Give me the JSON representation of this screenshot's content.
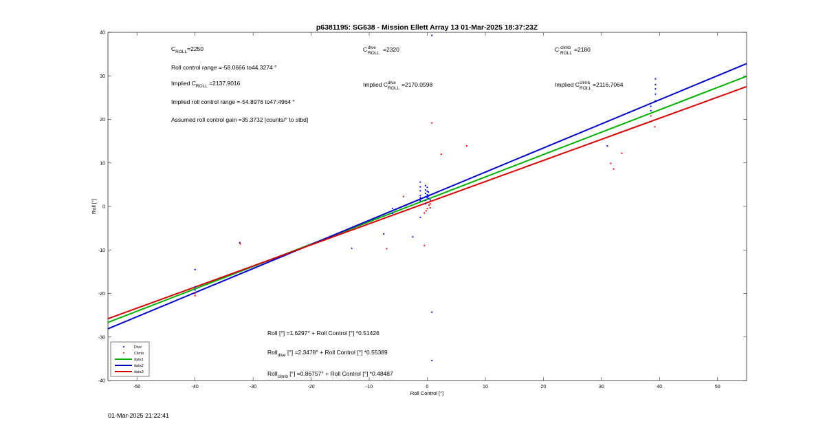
{
  "footer": {
    "timestamp": "01-Mar-2025 21:22:41"
  },
  "chart_data": {
    "type": "scatter",
    "title": "p6381195: SG638 - Mission Ellett Array 13 01-Mar-2025 18:37:23Z",
    "xlabel": "Roll Control [°]",
    "ylabel": "Roll [°]",
    "xlim": [
      -55,
      55
    ],
    "ylim": [
      -40,
      40
    ],
    "xticks": [
      -50,
      -40,
      -30,
      -20,
      -10,
      0,
      10,
      20,
      30,
      40,
      50
    ],
    "yticks": [
      -40,
      -30,
      -20,
      -10,
      0,
      10,
      20,
      30,
      40
    ],
    "grid": false,
    "legend": {
      "placement": "bottom-left",
      "entries": [
        "Dive",
        "Climb",
        "data1",
        "data2",
        "data3"
      ]
    },
    "colors": {
      "dive": "#0000ff",
      "climb": "#ff0000",
      "data1": "#00b000",
      "data2": "#0000c8",
      "data3": "#d40000"
    },
    "series": [
      {
        "name": "Dive",
        "marker": "dot",
        "points": [
          [
            -40,
            -14.5
          ],
          [
            -40,
            -18.5
          ],
          [
            -40,
            -19.2
          ],
          [
            -32.3,
            -8.3
          ],
          [
            -13,
            -9.6
          ],
          [
            -7.5,
            -6.3
          ],
          [
            -6,
            -0.5
          ],
          [
            -6,
            -1
          ],
          [
            -6,
            -1.6
          ],
          [
            -2.5,
            -7
          ],
          [
            -1.2,
            5.6
          ],
          [
            -1.2,
            4.5
          ],
          [
            -1.2,
            3.6
          ],
          [
            -1.2,
            2.5
          ],
          [
            -1.2,
            2
          ],
          [
            -1.2,
            1.3
          ],
          [
            -1.2,
            -2.5
          ],
          [
            -0.3,
            4.8
          ],
          [
            -0.3,
            3.8
          ],
          [
            -0.3,
            3
          ],
          [
            -0.3,
            2.2
          ],
          [
            -0.3,
            1.4
          ],
          [
            -0.3,
            0.6
          ],
          [
            0,
            4.4
          ],
          [
            0,
            3.5
          ],
          [
            0,
            2.7
          ],
          [
            0,
            2
          ],
          [
            0.2,
            3.3
          ],
          [
            0.2,
            2.4
          ],
          [
            0.2,
            1.8
          ],
          [
            0.5,
            1.5
          ],
          [
            0.8,
            39.3
          ],
          [
            0.8,
            -24.3
          ],
          [
            0.8,
            -35.4
          ],
          [
            31,
            13.9
          ],
          [
            38.5,
            22
          ],
          [
            38.5,
            23
          ],
          [
            39.3,
            29.3
          ],
          [
            39.3,
            28
          ],
          [
            39.3,
            27
          ],
          [
            39.3,
            25.8
          ],
          [
            39.3,
            24.3
          ]
        ]
      },
      {
        "name": "Climb",
        "marker": "dot",
        "points": [
          [
            -40,
            -20
          ],
          [
            -40,
            -20.5
          ],
          [
            -32.2,
            -8.6
          ],
          [
            -7,
            -9.7
          ],
          [
            -4.1,
            2.3
          ],
          [
            -0.5,
            -9
          ],
          [
            -0.5,
            -1.5
          ],
          [
            -0.2,
            -1
          ],
          [
            0,
            -0.5
          ],
          [
            0.3,
            0.3
          ],
          [
            0.5,
            -0.3
          ],
          [
            0.5,
            0.6
          ],
          [
            0.6,
            1.2
          ],
          [
            0.8,
            19.2
          ],
          [
            2.4,
            12
          ],
          [
            6.8,
            13.9
          ],
          [
            31.6,
            9.9
          ],
          [
            32.1,
            8.6
          ],
          [
            33.5,
            12.2
          ],
          [
            38.5,
            20.8
          ],
          [
            39.2,
            18.3
          ]
        ]
      }
    ],
    "fits": [
      {
        "name": "data1",
        "intercept": 1.6297,
        "slope": 0.51426
      },
      {
        "name": "data2",
        "intercept": 2.3478,
        "slope": 0.55389
      },
      {
        "name": "data3",
        "intercept": 0.86757,
        "slope": 0.48487
      }
    ],
    "annotations": {
      "c_roll": {
        "label": "C",
        "sub": "ROLL",
        "value": "=2250"
      },
      "roll_range": "Roll control range =-58.0666 to44.3274 °",
      "implied_c_roll": {
        "prefix": "Implied C",
        "sub": "ROLL",
        "value": " =2137.9016"
      },
      "implied_range": "Implied roll control range =-54.8976 to47.4964 °",
      "assumed_gain": "Assumed roll control gain =35.3732 [counts/° to stbd]",
      "c_roll_dive": {
        "label": "C",
        "sup": "dive",
        "sub": "ROLL",
        "value": "=2320"
      },
      "implied_c_roll_dive": {
        "prefix": "Implied C",
        "sup": "dive",
        "sub": "ROLL",
        "value": " =2170.0598"
      },
      "c_roll_climb": {
        "label": "C",
        "sup": "climb",
        "sub": "ROLL",
        "value": " =2180"
      },
      "implied_c_roll_climb": {
        "prefix": "Implied C",
        "sup": "climb",
        "sub": "ROLL",
        "value": " =2116.7064"
      },
      "fit_all": "Roll [°] =1.6297° + Roll Control [°] *0.51426",
      "fit_dive": {
        "prefix": "Roll",
        "sub": "dive",
        "rest": " [°] =2.3478° + Roll Control [°] *0.55389"
      },
      "fit_climb": {
        "prefix": "Roll",
        "sub": "climb",
        "rest": " [°] =0.86757° + Roll Control [°] *0.48487"
      }
    }
  }
}
